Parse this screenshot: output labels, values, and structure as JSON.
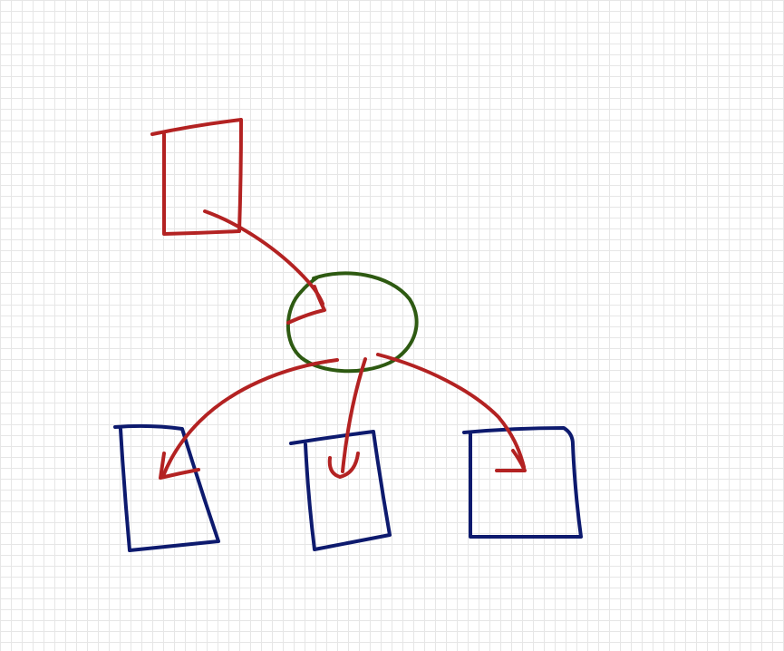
{
  "canvas": {
    "background": "#ffffff",
    "grid_color": "#e6e6e6"
  },
  "colors": {
    "red": "#b32222",
    "green": "#2e5a12",
    "navy": "#0d1a6e"
  },
  "diagram": {
    "nodes": [
      {
        "id": "top-box",
        "shape": "box",
        "color": "red"
      },
      {
        "id": "center-circle",
        "shape": "ellipse",
        "color": "green"
      },
      {
        "id": "bottom-left-box",
        "shape": "box",
        "color": "navy"
      },
      {
        "id": "bottom-middle-box",
        "shape": "box",
        "color": "navy"
      },
      {
        "id": "bottom-right-box",
        "shape": "box",
        "color": "navy"
      }
    ],
    "edges": [
      {
        "from": "top-box",
        "to": "center-circle",
        "color": "red"
      },
      {
        "from": "center-circle",
        "to": "bottom-left-box",
        "color": "red"
      },
      {
        "from": "center-circle",
        "to": "bottom-middle-box",
        "color": "red"
      },
      {
        "from": "center-circle",
        "to": "bottom-right-box",
        "color": "red"
      }
    ]
  }
}
